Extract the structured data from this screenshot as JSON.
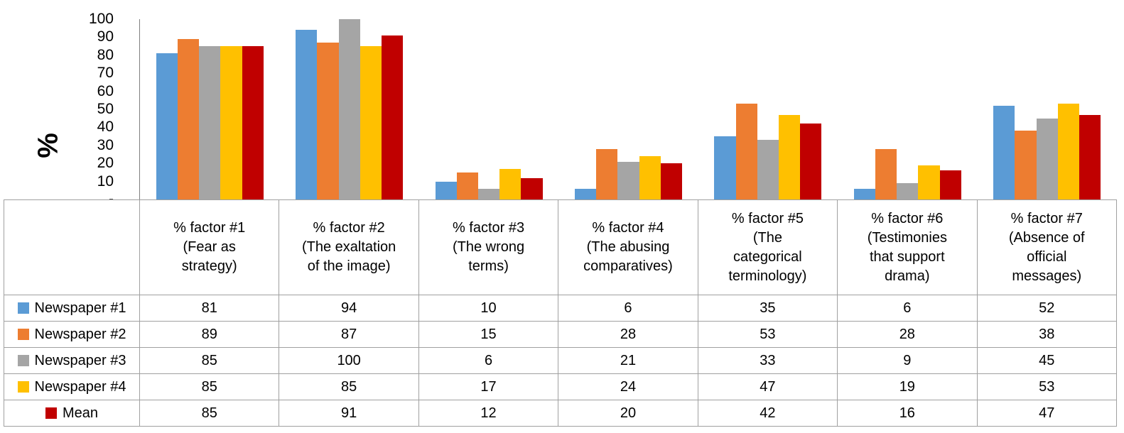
{
  "chart_data": {
    "type": "bar",
    "title": "",
    "y_axis_title": "%",
    "ylim": [
      0,
      100
    ],
    "grid": false,
    "legend_position": "table-left",
    "y_ticks": [
      {
        "value": 100,
        "label": "100"
      },
      {
        "value": 90,
        "label": "90"
      },
      {
        "value": 80,
        "label": "80"
      },
      {
        "value": 70,
        "label": "70"
      },
      {
        "value": 60,
        "label": "60"
      },
      {
        "value": 50,
        "label": "50"
      },
      {
        "value": 40,
        "label": "40"
      },
      {
        "value": 30,
        "label": "30"
      },
      {
        "value": 20,
        "label": "20"
      },
      {
        "value": 10,
        "label": "10"
      },
      {
        "value": 0,
        "label": "-"
      }
    ],
    "categories": [
      "% factor #1 (Fear as strategy)",
      "% factor #2 (The exaltation of the image)",
      "% factor #3 (The wrong terms)",
      "% factor #4 (The abusing comparatives)",
      "% factor #5 (The categorical terminology)",
      "% factor #6 (Testimonies that support drama)",
      "% factor #7 (Absence of official messages)"
    ],
    "category_display": [
      "% factor #1\n(Fear as\nstrategy)",
      "% factor #2\n(The exaltation\nof the image)",
      "% factor #3\n(The wrong\nterms)",
      "% factor #4\n(The abusing\ncomparatives)",
      "% factor #5\n(The\ncategorical\nterminology)",
      "% factor #6\n(Testimonies\nthat support\ndrama)",
      "% factor #7\n(Absence of\nofficial\nmessages)"
    ],
    "series": [
      {
        "name": "Newspaper #1",
        "color": "#5B9BD5",
        "values": [
          81,
          94,
          10,
          6,
          35,
          6,
          52
        ]
      },
      {
        "name": "Newspaper #2",
        "color": "#ED7D31",
        "values": [
          89,
          87,
          15,
          28,
          53,
          28,
          38
        ]
      },
      {
        "name": "Newspaper #3",
        "color": "#A5A5A5",
        "values": [
          85,
          100,
          6,
          21,
          33,
          9,
          45
        ]
      },
      {
        "name": "Newspaper #4",
        "color": "#FFC000",
        "values": [
          85,
          85,
          17,
          24,
          47,
          19,
          53
        ]
      },
      {
        "name": "Mean",
        "color": "#C00000",
        "values": [
          85,
          91,
          12,
          20,
          42,
          16,
          47
        ]
      }
    ],
    "axis_line_color": "#808080",
    "table_grid_color": "#a0a0a0"
  }
}
